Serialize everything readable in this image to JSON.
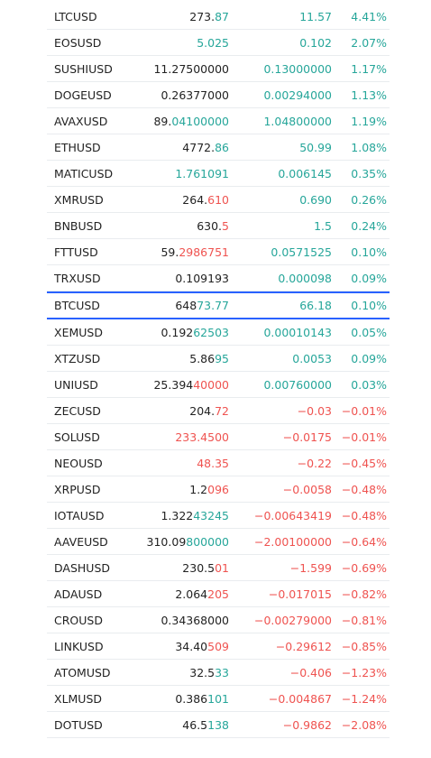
{
  "colors": {
    "up": "#26a69a",
    "down": "#ef5350",
    "text": "#222222",
    "highlight": "#2962ff"
  },
  "rows": [
    {
      "symbol": "LTCUSD",
      "last_base": "273.",
      "last_tail": "87",
      "last_dir": "up",
      "change": "11.57",
      "pct": "4.41%",
      "dir": "up"
    },
    {
      "symbol": "EOSUSD",
      "last_base": "",
      "last_tail": "5.025",
      "last_dir": "up",
      "change": "0.102",
      "pct": "2.07%",
      "dir": "up"
    },
    {
      "symbol": "SUSHIUSD",
      "last_base": "11.27500000",
      "last_tail": "",
      "last_dir": "up",
      "change": "0.13000000",
      "pct": "1.17%",
      "dir": "up"
    },
    {
      "symbol": "DOGEUSD",
      "last_base": "0.26377000",
      "last_tail": "",
      "last_dir": "up",
      "change": "0.00294000",
      "pct": "1.13%",
      "dir": "up"
    },
    {
      "symbol": "AVAXUSD",
      "last_base": "89.",
      "last_tail": "04100000",
      "last_dir": "up",
      "change": "1.04800000",
      "pct": "1.19%",
      "dir": "up"
    },
    {
      "symbol": "ETHUSD",
      "last_base": "4772.",
      "last_tail": "86",
      "last_dir": "up",
      "change": "50.99",
      "pct": "1.08%",
      "dir": "up"
    },
    {
      "symbol": "MATICUSD",
      "last_base": "",
      "last_tail": "1.761091",
      "last_dir": "up",
      "change": "0.006145",
      "pct": "0.35%",
      "dir": "up"
    },
    {
      "symbol": "XMRUSD",
      "last_base": "264.",
      "last_tail": "610",
      "last_dir": "down",
      "change": "0.690",
      "pct": "0.26%",
      "dir": "up"
    },
    {
      "symbol": "BNBUSD",
      "last_base": "630.",
      "last_tail": "5",
      "last_dir": "down",
      "change": "1.5",
      "pct": "0.24%",
      "dir": "up"
    },
    {
      "symbol": "FTTUSD",
      "last_base": "59.",
      "last_tail": "2986751",
      "last_dir": "down",
      "change": "0.0571525",
      "pct": "0.10%",
      "dir": "up"
    },
    {
      "symbol": "TRXUSD",
      "last_base": "0.109193",
      "last_tail": "",
      "last_dir": "up",
      "change": "0.000098",
      "pct": "0.09%",
      "dir": "up"
    },
    {
      "symbol": "BTCUSD",
      "last_base": "648",
      "last_tail": "73.77",
      "last_dir": "up",
      "change": "66.18",
      "pct": "0.10%",
      "dir": "up",
      "highlight": true
    },
    {
      "symbol": "XEMUSD",
      "last_base": "0.192",
      "last_tail": "62503",
      "last_dir": "up",
      "change": "0.00010143",
      "pct": "0.05%",
      "dir": "up"
    },
    {
      "symbol": "XTZUSD",
      "last_base": "5.86",
      "last_tail": "95",
      "last_dir": "up",
      "change": "0.0053",
      "pct": "0.09%",
      "dir": "up"
    },
    {
      "symbol": "UNIUSD",
      "last_base": "25.394",
      "last_tail": "40000",
      "last_dir": "down",
      "change": "0.00760000",
      "pct": "0.03%",
      "dir": "up"
    },
    {
      "symbol": "ZECUSD",
      "last_base": "204.",
      "last_tail": "72",
      "last_dir": "down",
      "change": "−0.03",
      "pct": "−0.01%",
      "dir": "down"
    },
    {
      "symbol": "SOLUSD",
      "last_base": "",
      "last_tail": "233.4500",
      "last_dir": "down",
      "change": "−0.0175",
      "pct": "−0.01%",
      "dir": "down"
    },
    {
      "symbol": "NEOUSD",
      "last_base": "",
      "last_tail": "48.35",
      "last_dir": "down",
      "change": "−0.22",
      "pct": "−0.45%",
      "dir": "down"
    },
    {
      "symbol": "XRPUSD",
      "last_base": "1.2",
      "last_tail": "096",
      "last_dir": "down",
      "change": "−0.0058",
      "pct": "−0.48%",
      "dir": "down"
    },
    {
      "symbol": "IOTAUSD",
      "last_base": "1.322",
      "last_tail": "43245",
      "last_dir": "up",
      "change": "−0.00643419",
      "pct": "−0.48%",
      "dir": "down"
    },
    {
      "symbol": "AAVEUSD",
      "last_base": "310.09",
      "last_tail": "800000",
      "last_dir": "up",
      "change": "−2.00100000",
      "pct": "−0.64%",
      "dir": "down"
    },
    {
      "symbol": "DASHUSD",
      "last_base": "230.5",
      "last_tail": "01",
      "last_dir": "down",
      "change": "−1.599",
      "pct": "−0.69%",
      "dir": "down"
    },
    {
      "symbol": "ADAUSD",
      "last_base": "2.064",
      "last_tail": "205",
      "last_dir": "down",
      "change": "−0.017015",
      "pct": "−0.82%",
      "dir": "down"
    },
    {
      "symbol": "CROUSD",
      "last_base": "0.34368000",
      "last_tail": "",
      "last_dir": "down",
      "change": "−0.00279000",
      "pct": "−0.81%",
      "dir": "down"
    },
    {
      "symbol": "LINKUSD",
      "last_base": "34.40",
      "last_tail": "509",
      "last_dir": "down",
      "change": "−0.29612",
      "pct": "−0.85%",
      "dir": "down"
    },
    {
      "symbol": "ATOMUSD",
      "last_base": "32.5",
      "last_tail": "33",
      "last_dir": "up",
      "change": "−0.406",
      "pct": "−1.23%",
      "dir": "down"
    },
    {
      "symbol": "XLMUSD",
      "last_base": "0.386",
      "last_tail": "101",
      "last_dir": "up",
      "change": "−0.004867",
      "pct": "−1.24%",
      "dir": "down"
    },
    {
      "symbol": "DOTUSD",
      "last_base": "46.5",
      "last_tail": "138",
      "last_dir": "up",
      "change": "−0.9862",
      "pct": "−2.08%",
      "dir": "down"
    }
  ]
}
